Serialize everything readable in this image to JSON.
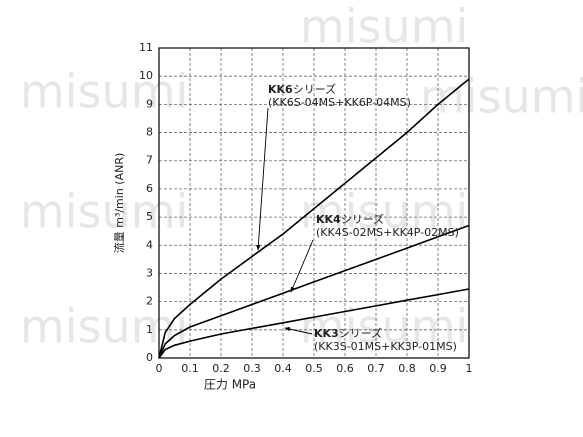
{
  "chart_data": {
    "type": "line",
    "xlabel": "圧力 MPa",
    "ylabel": "流量 m³/min (ANR)",
    "watermark": "misumi",
    "x": [
      0,
      0.02,
      0.05,
      0.1,
      0.2,
      0.3,
      0.4,
      0.5,
      0.6,
      0.7,
      0.8,
      0.9,
      1.0
    ],
    "series": [
      {
        "name": "KK6",
        "color": "#000000",
        "values": [
          0,
          0.9,
          1.4,
          1.9,
          2.8,
          3.6,
          4.4,
          5.3,
          6.2,
          7.1,
          8.0,
          9.0,
          9.9
        ]
      },
      {
        "name": "KK4",
        "color": "#000000",
        "values": [
          0,
          0.5,
          0.8,
          1.1,
          1.5,
          1.9,
          2.3,
          2.7,
          3.1,
          3.5,
          3.9,
          4.3,
          4.7
        ]
      },
      {
        "name": "KK3",
        "color": "#000000",
        "values": [
          0,
          0.3,
          0.45,
          0.6,
          0.85,
          1.05,
          1.25,
          1.45,
          1.65,
          1.85,
          2.05,
          2.25,
          2.45
        ]
      }
    ],
    "annotations": [
      {
        "bold": "KK6",
        "text": "シリーズ",
        "model": "(KK6S-04MS+KK6P-04MS)"
      },
      {
        "bold": "KK4",
        "text": "シリーズ",
        "model": "(KK4S-02MS+KK4P-02MS)"
      },
      {
        "bold": "KK3",
        "text": "シリーズ",
        "model": "(KK3S-01MS+KK3P-01MS)"
      }
    ],
    "xlim": [
      0,
      1
    ],
    "xticks": [
      0,
      0.1,
      0.2,
      0.3,
      0.4,
      0.5,
      0.6,
      0.7,
      0.8,
      0.9,
      1
    ],
    "ylim": [
      0,
      11
    ],
    "yticks": [
      0,
      1,
      2,
      3,
      4,
      5,
      6,
      7,
      8,
      9,
      10,
      11
    ],
    "grid": true
  }
}
